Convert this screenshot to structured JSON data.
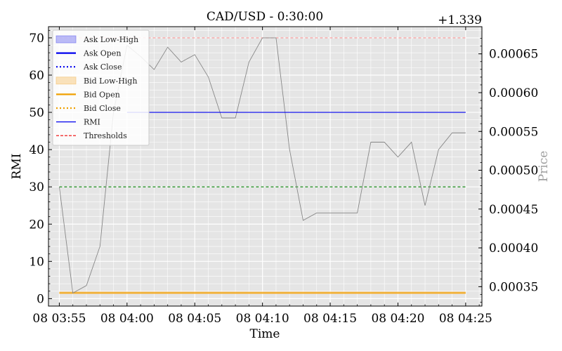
{
  "chart_data": {
    "type": "line",
    "title": "CAD/USD - 0:30:00",
    "xlabel": "Time",
    "ylabel_left": "RMI",
    "ylabel_right": "Price",
    "right_axis_offset": "+1.339",
    "x_ticks": [
      "08 03:55",
      "08 04:00",
      "08 04:05",
      "08 04:10",
      "08 04:15",
      "08 04:20",
      "08 04:25"
    ],
    "y_left_ticks": [
      "0",
      "10",
      "20",
      "30",
      "40",
      "50",
      "60",
      "70"
    ],
    "y_right_ticks": [
      "0.00035",
      "0.00040",
      "0.00045",
      "0.00050",
      "0.00055",
      "0.00060",
      "0.00065"
    ],
    "xlim_minutes": [
      -0.8,
      31.2
    ],
    "ylim_left": [
      -2,
      73
    ],
    "ylim_right": [
      0.000325,
      0.000685
    ],
    "grid": true,
    "legend_position": "upper-left",
    "legend": [
      {
        "label": "Ask Low-High",
        "kind": "patch",
        "color": "#6a6af0"
      },
      {
        "label": "Ask Open",
        "kind": "solid",
        "color": "#0000ee"
      },
      {
        "label": "Ask Close",
        "kind": "dotted",
        "color": "#0000ee"
      },
      {
        "label": "Bid Low-High",
        "kind": "patch",
        "color": "#f6c26b"
      },
      {
        "label": "Bid Open",
        "kind": "solid",
        "color": "#f0a000"
      },
      {
        "label": "Bid Close",
        "kind": "dotted",
        "color": "#f0a000"
      },
      {
        "label": "RMI",
        "kind": "solid",
        "color": "#0000ee"
      },
      {
        "label": "Thresholds",
        "kind": "dashed",
        "color": "#ee0000"
      }
    ],
    "series": [
      {
        "name": "RMI",
        "axis": "left",
        "color": "#888888",
        "x_minutes": [
          0,
          1,
          2,
          3,
          4,
          5,
          6,
          7,
          8,
          9,
          10,
          11,
          12,
          13,
          14,
          15,
          16,
          17,
          18,
          19,
          20,
          21,
          22,
          23,
          24,
          25,
          26,
          27,
          28,
          29,
          30
        ],
        "values": [
          30,
          1.5,
          3.5,
          14,
          50,
          68,
          65,
          61.5,
          67.5,
          63.5,
          65.5,
          59.5,
          48.5,
          48.5,
          63.5,
          70,
          70,
          40,
          21,
          23,
          23,
          23,
          23,
          42,
          42,
          38,
          42,
          25,
          40,
          44.5,
          44.5
        ]
      },
      {
        "name": "Ask Open",
        "axis": "left",
        "color": "#0000ee",
        "x_minutes": [
          5,
          30
        ],
        "values": [
          50,
          50
        ]
      }
    ],
    "thresholds": [
      {
        "value": 70,
        "color": "#ff9999",
        "style": "dashed"
      },
      {
        "value": 30,
        "color": "#008000",
        "style": "dashed"
      }
    ],
    "bid_band": {
      "low": 1.2,
      "high": 1.9,
      "fill": "#f6c26b",
      "line_color": "#f0a000"
    }
  }
}
